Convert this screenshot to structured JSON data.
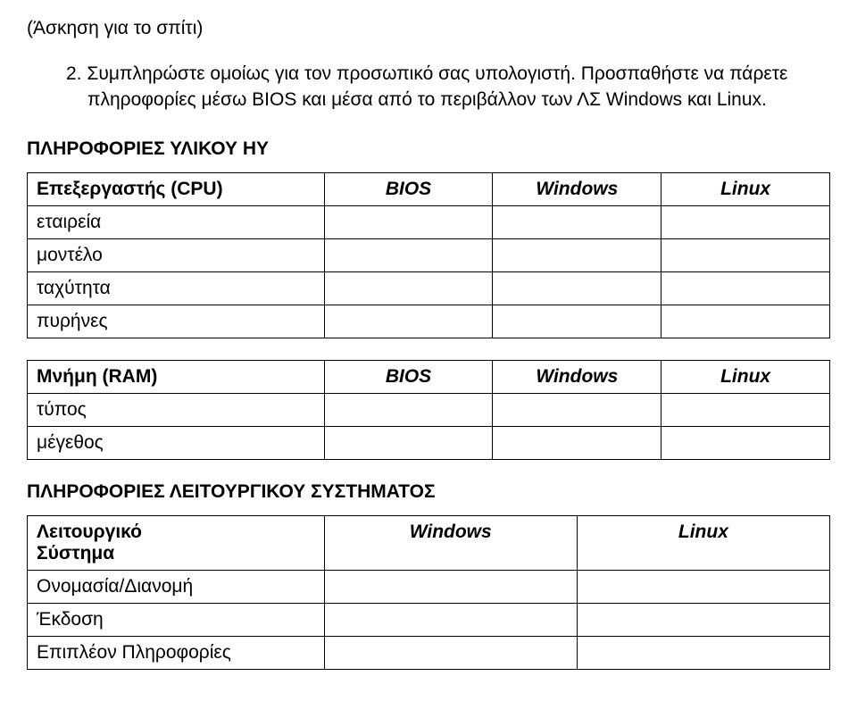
{
  "title": "(Άσκηση για το σπίτι)",
  "para_number": "2.",
  "para_text": "Συμπληρώστε ομοίως για τον προσωπικό σας υπολογιστή. Προσπαθήστε να πάρετε πληροφορίες μέσω BIOS και μέσα από το περιβάλλον των ΛΣ Windows και Linux.",
  "section1_heading": "ΠΛΗΡΟΦΟΡΙΕΣ ΥΛΙΚΟΥ ΗΥ",
  "table1": {
    "header": {
      "c1": "Επεξεργαστής (CPU)",
      "c2": "BIOS",
      "c3": "Windows",
      "c4": "Linux"
    },
    "rows": [
      "εταιρεία",
      "μοντέλο",
      "ταχύτητα",
      "πυρήνες"
    ]
  },
  "table2": {
    "header": {
      "c1": "Μνήμη (RAM)",
      "c2": "BIOS",
      "c3": "Windows",
      "c4": "Linux"
    },
    "rows": [
      "τύπος",
      "μέγεθος"
    ]
  },
  "section2_heading": "ΠΛΗΡΟΦΟΡΙΕΣ ΛΕΙΤΟΥΡΓΙΚΟΥ ΣΥΣΤΗΜΑΤΟΣ",
  "table3": {
    "header": {
      "c1a": "Λειτουργικό",
      "c1b": "Σύστημα",
      "c2": "Windows",
      "c3": "Linux"
    },
    "rows": [
      "Ονομασία/Διανομή",
      "Έκδοση",
      "Επιπλέον Πληροφορίες"
    ]
  }
}
